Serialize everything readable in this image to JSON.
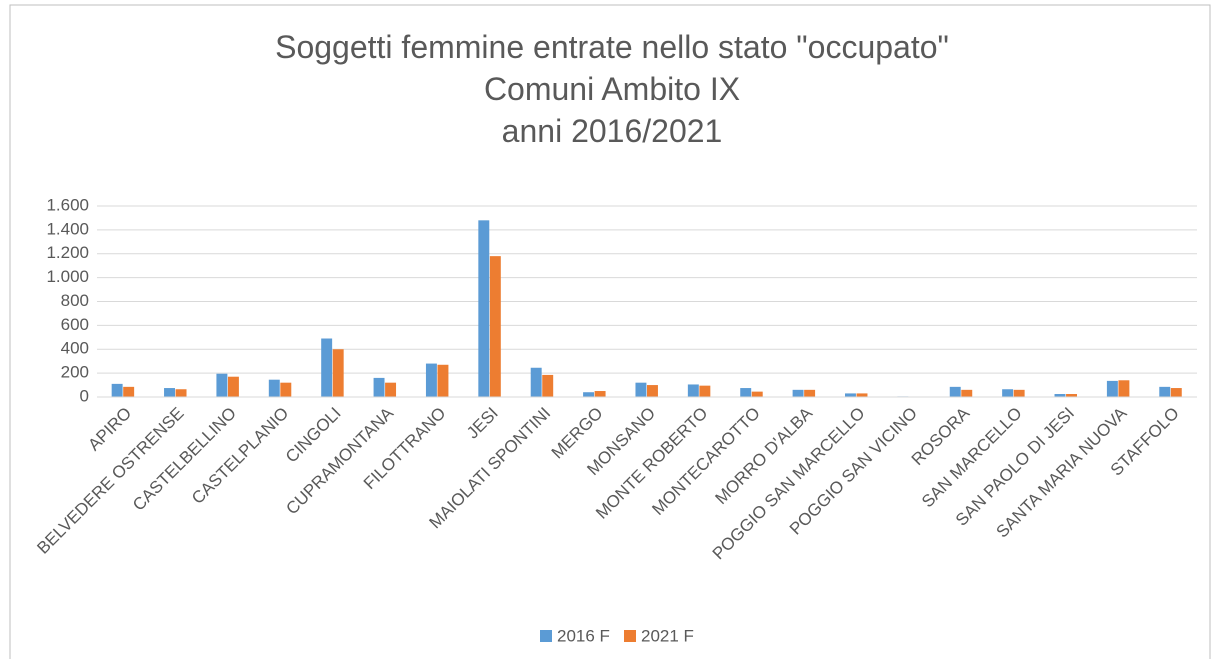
{
  "chart_data": {
    "type": "bar",
    "title": [
      "Soggetti femmine entrate nello stato \"occupato\"",
      "Comuni Ambito IX",
      "anni 2016/2021"
    ],
    "categories": [
      "APIRO",
      "BELVEDERE OSTRENSE",
      "CASTELBELLINO",
      "CASTELPLANIO",
      "CINGOLI",
      "CUPRAMONTANA",
      "FILOTTRANO",
      "JESI",
      "MAIOLATI SPONTINI",
      "MERGO",
      "MONSANO",
      "MONTE ROBERTO",
      "MONTECAROTTO",
      "MORRO D'ALBA",
      "POGGIO SAN MARCELLO",
      "POGGIO SAN VICINO",
      "ROSORA",
      "SAN MARCELLO",
      "SAN PAOLO DI JESI",
      "SANTA MARIA NUOVA",
      "STAFFOLO"
    ],
    "series": [
      {
        "name": "2016 F",
        "color": "#5b9bd5",
        "values": [
          110,
          75,
          195,
          145,
          490,
          160,
          280,
          1480,
          245,
          40,
          120,
          105,
          75,
          60,
          30,
          5,
          85,
          65,
          25,
          135,
          85
        ]
      },
      {
        "name": "2021 F",
        "color": "#ed7d31",
        "values": [
          85,
          65,
          170,
          120,
          400,
          120,
          270,
          1180,
          185,
          50,
          100,
          95,
          45,
          60,
          30,
          3,
          60,
          60,
          25,
          140,
          75
        ]
      }
    ],
    "ylim": [
      0,
      1600
    ],
    "yticks": [
      0,
      200,
      400,
      600,
      800,
      {
        "value": 1000,
        "label": "1.000"
      },
      {
        "value": 1200,
        "label": "1.200"
      },
      {
        "value": 1400,
        "label": "1.400"
      },
      {
        "value": 1600,
        "label": "1.600"
      }
    ],
    "grid": true,
    "legend": "bottom"
  }
}
